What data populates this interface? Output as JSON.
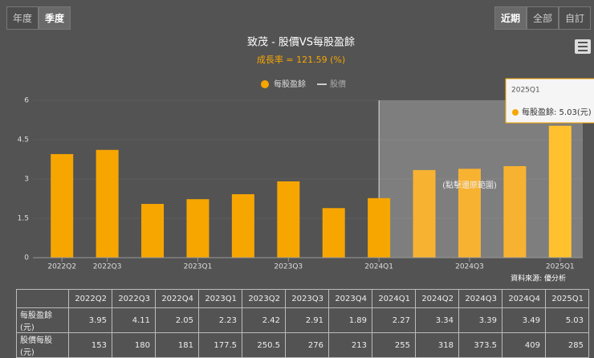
{
  "buttons_left": [
    "年度",
    "季度"
  ],
  "buttons_right": [
    "近期",
    "全部",
    "自訂"
  ],
  "chart_data": {
    "type": "bar",
    "title": "致茂 - 股價VS每股盈餘",
    "subtitle": "成長率 = 121.59 (%)",
    "categories": [
      "2022Q2",
      "2022Q3",
      null,
      "2023Q1",
      null,
      "2023Q3",
      null,
      "2024Q1",
      null,
      "2024Q3",
      null,
      "2025Q1"
    ],
    "series": [
      {
        "name": "每股盈餘",
        "color": "#f7a600",
        "values": [
          3.95,
          4.11,
          2.05,
          2.23,
          2.42,
          2.91,
          1.89,
          2.27,
          3.34,
          3.39,
          3.49,
          5.03
        ]
      },
      {
        "name": "股價",
        "color": "#cccccc",
        "visible": false
      }
    ],
    "ylim": [
      0,
      6
    ],
    "yticks": [
      0,
      1.5,
      3,
      4.5,
      6
    ],
    "grid": true,
    "zoom_label": "(點擊還原範圍)",
    "tooltip": {
      "title": "2025Q1",
      "label": "每股盈餘: 5.03(元)"
    }
  },
  "source": "資料來源: 優分析",
  "table": {
    "header": [
      "2022Q2",
      "2022Q3",
      "2022Q4",
      "2023Q1",
      "2023Q2",
      "2023Q3",
      "2023Q4",
      "2024Q1",
      "2024Q2",
      "2024Q3",
      "2024Q4",
      "2025Q1"
    ],
    "rows": [
      [
        "每股盈餘(元)",
        3.95,
        4.11,
        2.05,
        2.23,
        2.42,
        2.91,
        1.89,
        2.27,
        3.34,
        3.39,
        3.49,
        5.03
      ],
      [
        "股價每股(元)",
        153,
        180,
        181,
        177.5,
        250.5,
        276,
        213,
        255,
        318,
        373.5,
        409,
        285
      ]
    ]
  }
}
